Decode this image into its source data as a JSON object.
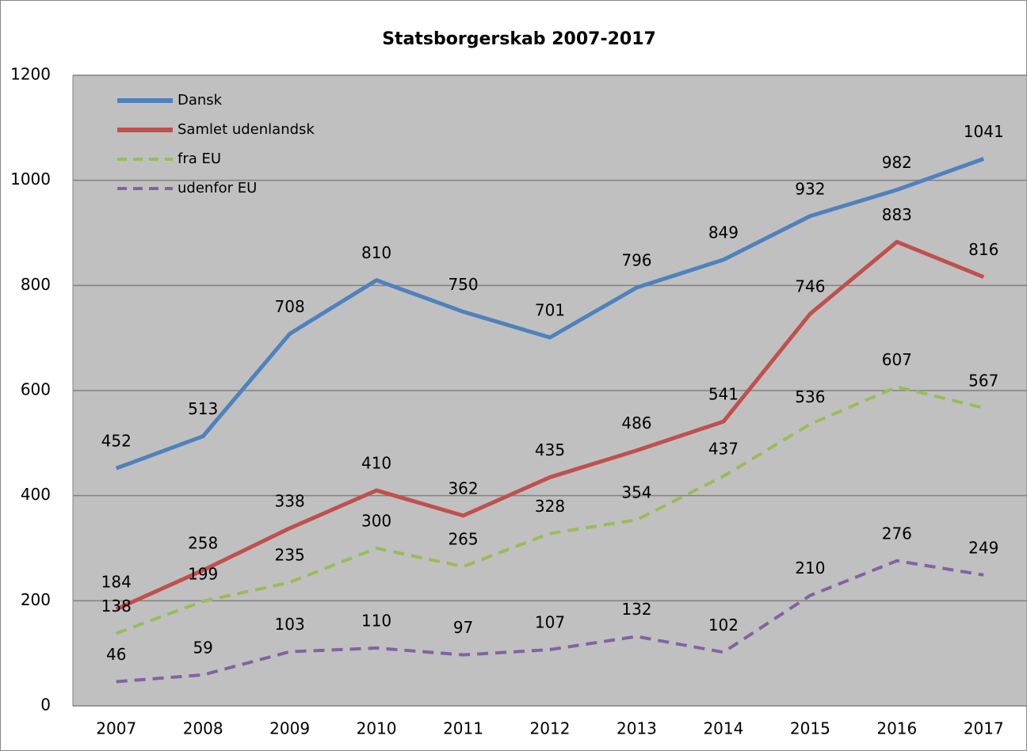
{
  "chart_data": {
    "type": "line",
    "title": "Statsborgerskab 2007-2017",
    "categories": [
      "2007",
      "2008",
      "2009",
      "2010",
      "2011",
      "2012",
      "2013",
      "2014",
      "2015",
      "2016",
      "2017"
    ],
    "series": [
      {
        "name": "Dansk",
        "color": "#4f81bd",
        "dashed": false,
        "values": [
          452,
          513,
          708,
          810,
          750,
          701,
          796,
          849,
          932,
          982,
          1041
        ]
      },
      {
        "name": "Samlet udenlandsk",
        "color": "#c0504d",
        "dashed": false,
        "values": [
          184,
          258,
          338,
          410,
          362,
          435,
          486,
          541,
          746,
          883,
          816
        ]
      },
      {
        "name": "fra EU",
        "color": "#9bbb59",
        "dashed": true,
        "values": [
          138,
          199,
          235,
          300,
          265,
          328,
          354,
          437,
          536,
          607,
          567
        ]
      },
      {
        "name": "udenfor EU",
        "color": "#8064a2",
        "dashed": true,
        "values": [
          46,
          59,
          103,
          110,
          97,
          107,
          132,
          102,
          210,
          276,
          249
        ]
      }
    ],
    "ylim": [
      0,
      1200
    ],
    "yticks": [
      0,
      200,
      400,
      600,
      800,
      1000,
      1200
    ],
    "grid": true,
    "legend": "top-left"
  }
}
